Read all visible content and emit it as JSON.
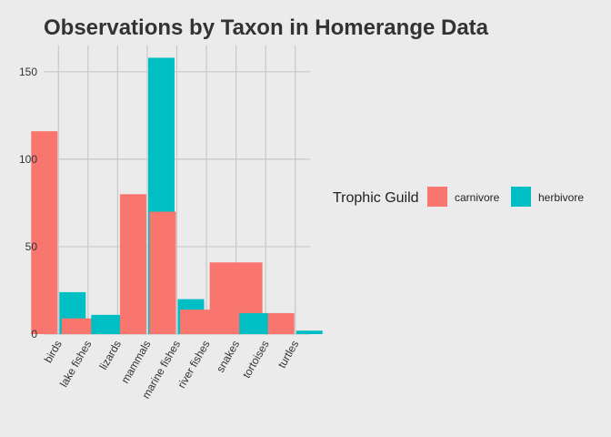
{
  "chart_data": {
    "type": "bar",
    "title": "Observations by Taxon in Homerange Data",
    "xlabel": "",
    "ylabel": "",
    "categories": [
      "birds",
      "lake fishes",
      "lizards",
      "mammals",
      "marine fishes",
      "river fishes",
      "snakes",
      "tortoises",
      "turtles"
    ],
    "series": [
      {
        "name": "carnivore",
        "color": "#f8766d",
        "values": [
          116,
          9,
          0,
          80,
          70,
          14,
          41,
          0,
          12
        ]
      },
      {
        "name": "herbivore",
        "color": "#00bfc4",
        "values": [
          24,
          0,
          11,
          158,
          20,
          0,
          0,
          12,
          2
        ]
      }
    ],
    "ylim": [
      0,
      165
    ],
    "yticks": [
      0,
      50,
      100,
      150
    ],
    "grid": true,
    "legend": {
      "title": "Trophic Guild",
      "position": "right"
    }
  }
}
